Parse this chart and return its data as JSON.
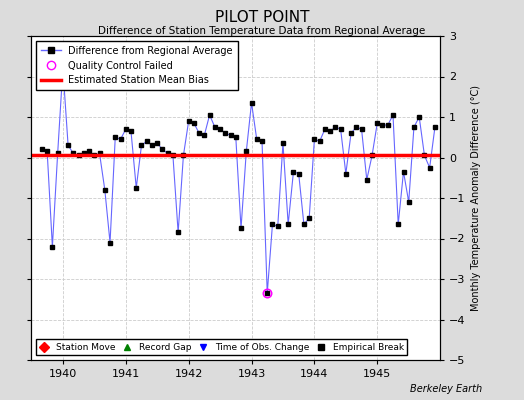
{
  "title": "PILOT POINT",
  "subtitle": "Difference of Station Temperature Data from Regional Average",
  "ylabel": "Monthly Temperature Anomaly Difference (°C)",
  "credit": "Berkeley Earth",
  "xlim": [
    1939.5,
    1946.0
  ],
  "ylim": [
    -5,
    3
  ],
  "yticks": [
    -5,
    -4,
    -3,
    -2,
    -1,
    0,
    1,
    2,
    3
  ],
  "xticks": [
    1940,
    1941,
    1942,
    1943,
    1944,
    1945
  ],
  "bias_value": 0.05,
  "fig_background_color": "#dcdcdc",
  "plot_background": "#ffffff",
  "line_color": "#6666ff",
  "marker_color": "#000000",
  "bias_color": "#ff0000",
  "qc_failed_x": [
    1943.25
  ],
  "qc_failed_y": [
    -3.35
  ],
  "time_series": {
    "x": [
      1939.667,
      1939.75,
      1939.833,
      1939.917,
      1940.0,
      1940.083,
      1940.167,
      1940.25,
      1940.333,
      1940.417,
      1940.5,
      1940.583,
      1940.667,
      1940.75,
      1940.833,
      1940.917,
      1941.0,
      1941.083,
      1941.167,
      1941.25,
      1941.333,
      1941.417,
      1941.5,
      1941.583,
      1941.667,
      1941.75,
      1941.833,
      1941.917,
      1942.0,
      1942.083,
      1942.167,
      1942.25,
      1942.333,
      1942.417,
      1942.5,
      1942.583,
      1942.667,
      1942.75,
      1942.833,
      1942.917,
      1943.0,
      1943.083,
      1943.167,
      1943.25,
      1943.333,
      1943.417,
      1943.5,
      1943.583,
      1943.667,
      1943.75,
      1943.833,
      1943.917,
      1944.0,
      1944.083,
      1944.167,
      1944.25,
      1944.333,
      1944.417,
      1944.5,
      1944.583,
      1944.667,
      1944.75,
      1944.833,
      1944.917,
      1945.0,
      1945.083,
      1945.167,
      1945.25,
      1945.333,
      1945.417,
      1945.5,
      1945.583,
      1945.667,
      1945.75,
      1945.833,
      1945.917
    ],
    "y": [
      0.2,
      0.15,
      -2.2,
      0.1,
      2.2,
      0.3,
      0.1,
      0.05,
      0.1,
      0.15,
      0.05,
      0.1,
      -0.8,
      -2.1,
      0.5,
      0.45,
      0.7,
      0.65,
      -0.75,
      0.3,
      0.4,
      0.3,
      0.35,
      0.2,
      0.1,
      0.05,
      -1.85,
      0.05,
      0.9,
      0.85,
      0.6,
      0.55,
      1.05,
      0.75,
      0.7,
      0.6,
      0.55,
      0.5,
      -1.75,
      0.15,
      1.35,
      0.45,
      0.4,
      -3.35,
      -1.65,
      -1.7,
      0.35,
      -1.65,
      -0.35,
      -0.4,
      -1.65,
      -1.5,
      0.45,
      0.4,
      0.7,
      0.65,
      0.75,
      0.7,
      -0.4,
      0.6,
      0.75,
      0.7,
      -0.55,
      0.05,
      0.85,
      0.8,
      0.8,
      1.05,
      -1.65,
      -0.35,
      -1.1,
      0.75,
      1.0,
      0.05,
      -0.25,
      0.75
    ]
  }
}
